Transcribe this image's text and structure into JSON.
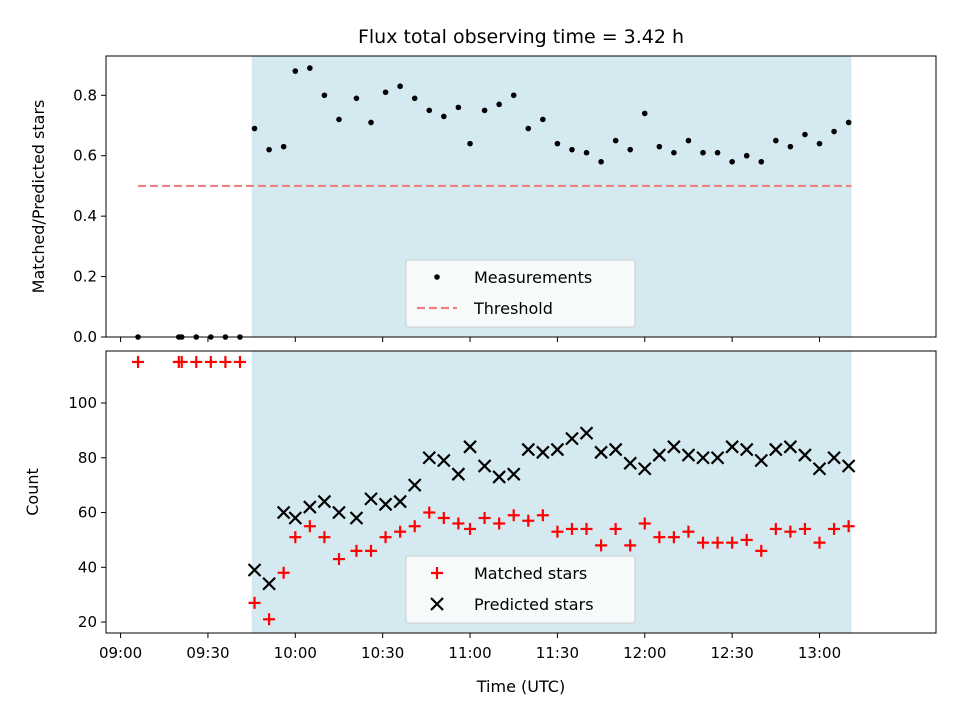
{
  "chart_data": [
    {
      "type": "scatter",
      "panel": "top",
      "title": "Flux total observing time = 3.42 h",
      "xlabel": "",
      "ylabel": "Matched/Predicted stars",
      "xlim": [
        "08:55",
        "13:40"
      ],
      "ylim": [
        0,
        0.93
      ],
      "yticks": [
        0.0,
        0.2,
        0.4,
        0.6,
        0.8
      ],
      "shaded_interval": {
        "from": "09:45",
        "to": "13:11",
        "color": "#d4eaf0"
      },
      "grid": false,
      "legend_placement": "lower-center",
      "series": [
        {
          "name": "Measurements",
          "marker": "dot",
          "color": "#000000",
          "points": [
            [
              "09:06",
              0.0
            ],
            [
              "09:20",
              0.0
            ],
            [
              "09:21",
              0.0
            ],
            [
              "09:26",
              0.0
            ],
            [
              "09:31",
              0.0
            ],
            [
              "09:36",
              0.0
            ],
            [
              "09:41",
              0.0
            ],
            [
              "09:46",
              0.69
            ],
            [
              "09:51",
              0.62
            ],
            [
              "09:56",
              0.63
            ],
            [
              "10:00",
              0.88
            ],
            [
              "10:05",
              0.89
            ],
            [
              "10:10",
              0.8
            ],
            [
              "10:15",
              0.72
            ],
            [
              "10:21",
              0.79
            ],
            [
              "10:26",
              0.71
            ],
            [
              "10:31",
              0.81
            ],
            [
              "10:36",
              0.83
            ],
            [
              "10:41",
              0.79
            ],
            [
              "10:46",
              0.75
            ],
            [
              "10:51",
              0.73
            ],
            [
              "10:56",
              0.76
            ],
            [
              "11:00",
              0.64
            ],
            [
              "11:05",
              0.75
            ],
            [
              "11:10",
              0.77
            ],
            [
              "11:15",
              0.8
            ],
            [
              "11:20",
              0.69
            ],
            [
              "11:25",
              0.72
            ],
            [
              "11:30",
              0.64
            ],
            [
              "11:35",
              0.62
            ],
            [
              "11:40",
              0.61
            ],
            [
              "11:45",
              0.58
            ],
            [
              "11:50",
              0.65
            ],
            [
              "11:55",
              0.62
            ],
            [
              "12:00",
              0.74
            ],
            [
              "12:05",
              0.63
            ],
            [
              "12:10",
              0.61
            ],
            [
              "12:15",
              0.65
            ],
            [
              "12:20",
              0.61
            ],
            [
              "12:25",
              0.61
            ],
            [
              "12:30",
              0.58
            ],
            [
              "12:35",
              0.6
            ],
            [
              "12:40",
              0.58
            ],
            [
              "12:45",
              0.65
            ],
            [
              "12:50",
              0.63
            ],
            [
              "12:55",
              0.67
            ],
            [
              "13:00",
              0.64
            ],
            [
              "13:05",
              0.68
            ],
            [
              "13:10",
              0.71
            ]
          ]
        },
        {
          "name": "Threshold",
          "line": "dashed",
          "color": "#f08080",
          "points": [
            [
              "09:06",
              0.5
            ],
            [
              "13:11",
              0.5
            ]
          ]
        }
      ]
    },
    {
      "type": "scatter",
      "panel": "bottom",
      "title": "",
      "xlabel": "Time (UTC)",
      "ylabel": "Count",
      "xlim": [
        "08:55",
        "13:40"
      ],
      "ylim": [
        16,
        119
      ],
      "yticks": [
        20,
        40,
        60,
        80,
        100
      ],
      "xticks": [
        "09:00",
        "09:30",
        "10:00",
        "10:30",
        "11:00",
        "11:30",
        "12:00",
        "12:30",
        "13:00"
      ],
      "shaded_interval": {
        "from": "09:45",
        "to": "13:11",
        "color": "#d4eaf0"
      },
      "grid": false,
      "legend_placement": "lower-center",
      "series": [
        {
          "name": "Matched stars",
          "marker": "plus",
          "color": "#ff0000",
          "points": [
            [
              "09:06",
              115
            ],
            [
              "09:20",
              115
            ],
            [
              "09:21",
              115
            ],
            [
              "09:26",
              115
            ],
            [
              "09:31",
              115
            ],
            [
              "09:36",
              115
            ],
            [
              "09:41",
              115
            ],
            [
              "09:46",
              27
            ],
            [
              "09:51",
              21
            ],
            [
              "09:56",
              38
            ],
            [
              "10:00",
              51
            ],
            [
              "10:05",
              55
            ],
            [
              "10:10",
              51
            ],
            [
              "10:15",
              43
            ],
            [
              "10:21",
              46
            ],
            [
              "10:26",
              46
            ],
            [
              "10:31",
              51
            ],
            [
              "10:36",
              53
            ],
            [
              "10:41",
              55
            ],
            [
              "10:46",
              60
            ],
            [
              "10:51",
              58
            ],
            [
              "10:56",
              56
            ],
            [
              "11:00",
              54
            ],
            [
              "11:05",
              58
            ],
            [
              "11:10",
              56
            ],
            [
              "11:15",
              59
            ],
            [
              "11:20",
              57
            ],
            [
              "11:25",
              59
            ],
            [
              "11:30",
              53
            ],
            [
              "11:35",
              54
            ],
            [
              "11:40",
              54
            ],
            [
              "11:45",
              48
            ],
            [
              "11:50",
              54
            ],
            [
              "11:55",
              48
            ],
            [
              "12:00",
              56
            ],
            [
              "12:05",
              51
            ],
            [
              "12:10",
              51
            ],
            [
              "12:15",
              53
            ],
            [
              "12:20",
              49
            ],
            [
              "12:25",
              49
            ],
            [
              "12:30",
              49
            ],
            [
              "12:35",
              50
            ],
            [
              "12:40",
              46
            ],
            [
              "12:45",
              54
            ],
            [
              "12:50",
              53
            ],
            [
              "12:55",
              54
            ],
            [
              "13:00",
              49
            ],
            [
              "13:05",
              54
            ],
            [
              "13:10",
              55
            ]
          ]
        },
        {
          "name": "Predicted stars",
          "marker": "x",
          "color": "#000000",
          "points": [
            [
              "09:46",
              39
            ],
            [
              "09:51",
              34
            ],
            [
              "09:56",
              60
            ],
            [
              "10:00",
              58
            ],
            [
              "10:05",
              62
            ],
            [
              "10:10",
              64
            ],
            [
              "10:15",
              60
            ],
            [
              "10:21",
              58
            ],
            [
              "10:26",
              65
            ],
            [
              "10:31",
              63
            ],
            [
              "10:36",
              64
            ],
            [
              "10:41",
              70
            ],
            [
              "10:46",
              80
            ],
            [
              "10:51",
              79
            ],
            [
              "10:56",
              74
            ],
            [
              "11:00",
              84
            ],
            [
              "11:05",
              77
            ],
            [
              "11:10",
              73
            ],
            [
              "11:15",
              74
            ],
            [
              "11:20",
              83
            ],
            [
              "11:25",
              82
            ],
            [
              "11:30",
              83
            ],
            [
              "11:35",
              87
            ],
            [
              "11:40",
              89
            ],
            [
              "11:45",
              82
            ],
            [
              "11:50",
              83
            ],
            [
              "11:55",
              78
            ],
            [
              "12:00",
              76
            ],
            [
              "12:05",
              81
            ],
            [
              "12:10",
              84
            ],
            [
              "12:15",
              81
            ],
            [
              "12:20",
              80
            ],
            [
              "12:25",
              80
            ],
            [
              "12:30",
              84
            ],
            [
              "12:35",
              83
            ],
            [
              "12:40",
              79
            ],
            [
              "12:45",
              83
            ],
            [
              "12:50",
              84
            ],
            [
              "12:55",
              81
            ],
            [
              "13:00",
              76
            ],
            [
              "13:05",
              80
            ],
            [
              "13:10",
              77
            ]
          ]
        }
      ]
    }
  ]
}
